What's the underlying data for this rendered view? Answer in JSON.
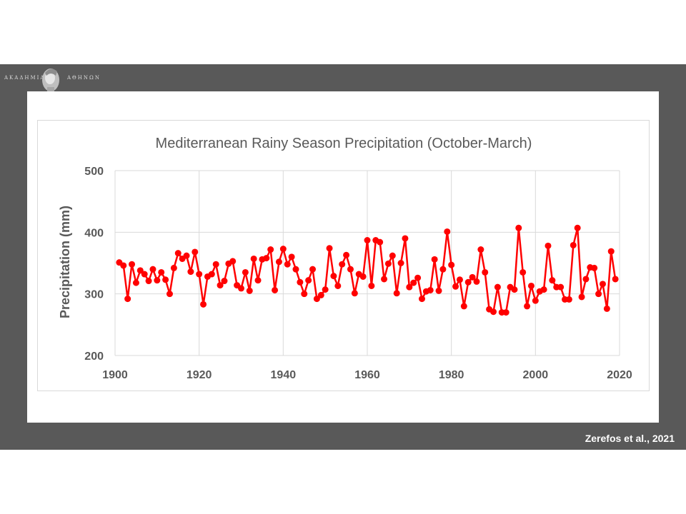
{
  "logo": {
    "left_text": "ΑΚΑΔΗΜΙΑ",
    "right_text": "ΑΘΗΝΩΝ"
  },
  "credit": "Zerefos et al., 2021",
  "colors": {
    "series": "#ff0000",
    "grid": "#d9d9d9",
    "band": "#595959",
    "axis_text": "#595959"
  },
  "chart_data": {
    "type": "line",
    "title": "Mediterranean Rainy Season Precipitation (October-March)",
    "xlabel": "",
    "ylabel": "Precipitation (mm)",
    "xlim": [
      1900,
      2020
    ],
    "ylim": [
      200,
      500
    ],
    "xticks": [
      1900,
      1920,
      1940,
      1960,
      1980,
      2000,
      2020
    ],
    "yticks": [
      200,
      300,
      400,
      500
    ],
    "grid": true,
    "legend": "none",
    "series": [
      {
        "x": [
          1901,
          1902,
          1903,
          1904,
          1905,
          1906,
          1907,
          1908,
          1909,
          1910,
          1911,
          1912,
          1913,
          1914,
          1915,
          1916,
          1917,
          1918,
          1919,
          1920,
          1921,
          1922,
          1923,
          1924,
          1925,
          1926,
          1927,
          1928,
          1929,
          1930,
          1931,
          1932,
          1933,
          1934,
          1935,
          1936,
          1937,
          1938,
          1939,
          1940,
          1941,
          1942,
          1943,
          1944,
          1945,
          1946,
          1947,
          1948,
          1949,
          1950,
          1951,
          1952,
          1953,
          1954,
          1955,
          1956,
          1957,
          1958,
          1959,
          1960,
          1961,
          1962,
          1963,
          1964,
          1965,
          1966,
          1967,
          1968,
          1969,
          1970,
          1971,
          1972,
          1973,
          1974,
          1975,
          1976,
          1977,
          1978,
          1979,
          1980,
          1981,
          1982,
          1983,
          1984,
          1985,
          1986,
          1987,
          1988,
          1989,
          1990,
          1991,
          1992,
          1993,
          1994,
          1995,
          1996,
          1997,
          1998,
          1999,
          2000,
          2001,
          2002,
          2003,
          2004,
          2005,
          2006,
          2007,
          2008,
          2009,
          2010,
          2011,
          2012,
          2013,
          2014,
          2015,
          2016,
          2017,
          2018,
          2019
        ],
        "values": [
          351,
          346,
          292,
          348,
          318,
          338,
          332,
          321,
          340,
          322,
          335,
          323,
          300,
          342,
          366,
          357,
          362,
          336,
          368,
          332,
          283,
          328,
          332,
          348,
          314,
          321,
          349,
          353,
          314,
          309,
          335,
          305,
          357,
          322,
          356,
          358,
          372,
          306,
          352,
          373,
          348,
          360,
          340,
          319,
          300,
          322,
          340,
          292,
          298,
          307,
          374,
          329,
          313,
          348,
          363,
          340,
          301,
          332,
          328,
          387,
          313,
          387,
          384,
          324,
          349,
          362,
          301,
          350,
          390,
          311,
          318,
          326,
          292,
          304,
          306,
          356,
          305,
          340,
          401,
          347,
          312,
          323,
          280,
          319,
          327,
          320,
          372,
          335,
          275,
          271,
          311,
          270,
          270,
          311,
          307,
          407,
          335,
          280,
          313,
          289,
          304,
          307,
          378,
          322,
          311,
          311,
          291,
          291,
          379,
          407,
          295,
          324,
          343,
          342,
          300,
          316,
          276,
          369,
          324
        ]
      }
    ]
  }
}
